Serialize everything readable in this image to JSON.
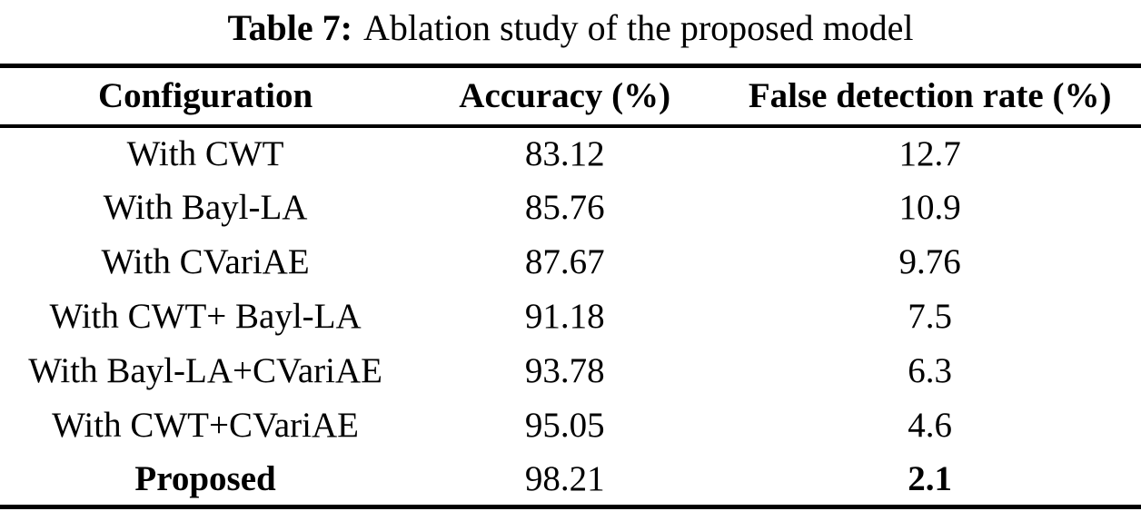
{
  "caption": {
    "label": "Table 7:",
    "text": "Ablation study of the proposed model"
  },
  "table": {
    "columns": [
      "Configuration",
      "Accuracy (%)",
      "False detection rate (%)"
    ],
    "rows": [
      {
        "cells": [
          "With CWT",
          "83.12",
          "12.7"
        ],
        "bold": [
          false,
          false,
          false
        ]
      },
      {
        "cells": [
          "With Bayl-LA",
          "85.76",
          "10.9"
        ],
        "bold": [
          false,
          false,
          false
        ]
      },
      {
        "cells": [
          "With CVariAE",
          "87.67",
          "9.76"
        ],
        "bold": [
          false,
          false,
          false
        ]
      },
      {
        "cells": [
          "With CWT+ Bayl-LA",
          "91.18",
          "7.5"
        ],
        "bold": [
          false,
          false,
          false
        ]
      },
      {
        "cells": [
          "With Bayl-LA+CVariAE",
          "93.78",
          "6.3"
        ],
        "bold": [
          false,
          false,
          false
        ]
      },
      {
        "cells": [
          "With CWT+CVariAE",
          "95.05",
          "4.6"
        ],
        "bold": [
          false,
          false,
          false
        ]
      },
      {
        "cells": [
          "Proposed",
          "98.21",
          "2.1"
        ],
        "bold": [
          true,
          false,
          true
        ]
      }
    ]
  },
  "colors": {
    "text": "#000000",
    "background": "#ffffff",
    "rule": "#000000"
  }
}
